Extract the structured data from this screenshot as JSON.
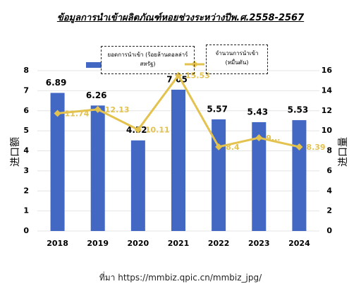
{
  "chart_data": {
    "type": "bar-line",
    "title": "ข้อมูลการนำเข้าผลิตภัณฑ์หอยช่วงระหว่างปีพ.ศ.2558-2567",
    "source": "ที่มา https://mmbiz.qpic.cn/mmbiz_jpg/",
    "y_label": "进口额",
    "y2_label": "进口量",
    "categories": [
      "2018",
      "2019",
      "2020",
      "2021",
      "2022",
      "2023",
      "2024"
    ],
    "series": [
      {
        "name": "ยอดการนำเข้า (ร้อยล้านดอลล่าร์สหรัฐ)",
        "type": "bar",
        "color": "#4268c4",
        "values": [
          6.89,
          6.26,
          4.52,
          7.05,
          5.57,
          5.43,
          5.53
        ]
      },
      {
        "name": "จำนวนการนำเข้า (หมื่นตัน)",
        "type": "line",
        "axis": "y2",
        "color": "#e3c24e",
        "values": [
          11.74,
          12.13,
          10.11,
          15.53,
          8.4,
          9.3,
          8.39
        ],
        "value_labels": [
          "11.74",
          "12.13",
          "10.11",
          "15.53",
          "8.4",
          "9...",
          "8.39"
        ]
      }
    ],
    "ylim": [
      0,
      8
    ],
    "yticks": [
      0,
      1,
      2,
      3,
      4,
      5,
      6,
      7,
      8
    ],
    "y2lim": [
      0,
      16
    ],
    "y2ticks": [
      0,
      2,
      4,
      6,
      8,
      10,
      12,
      14,
      16
    ],
    "grid": true
  }
}
